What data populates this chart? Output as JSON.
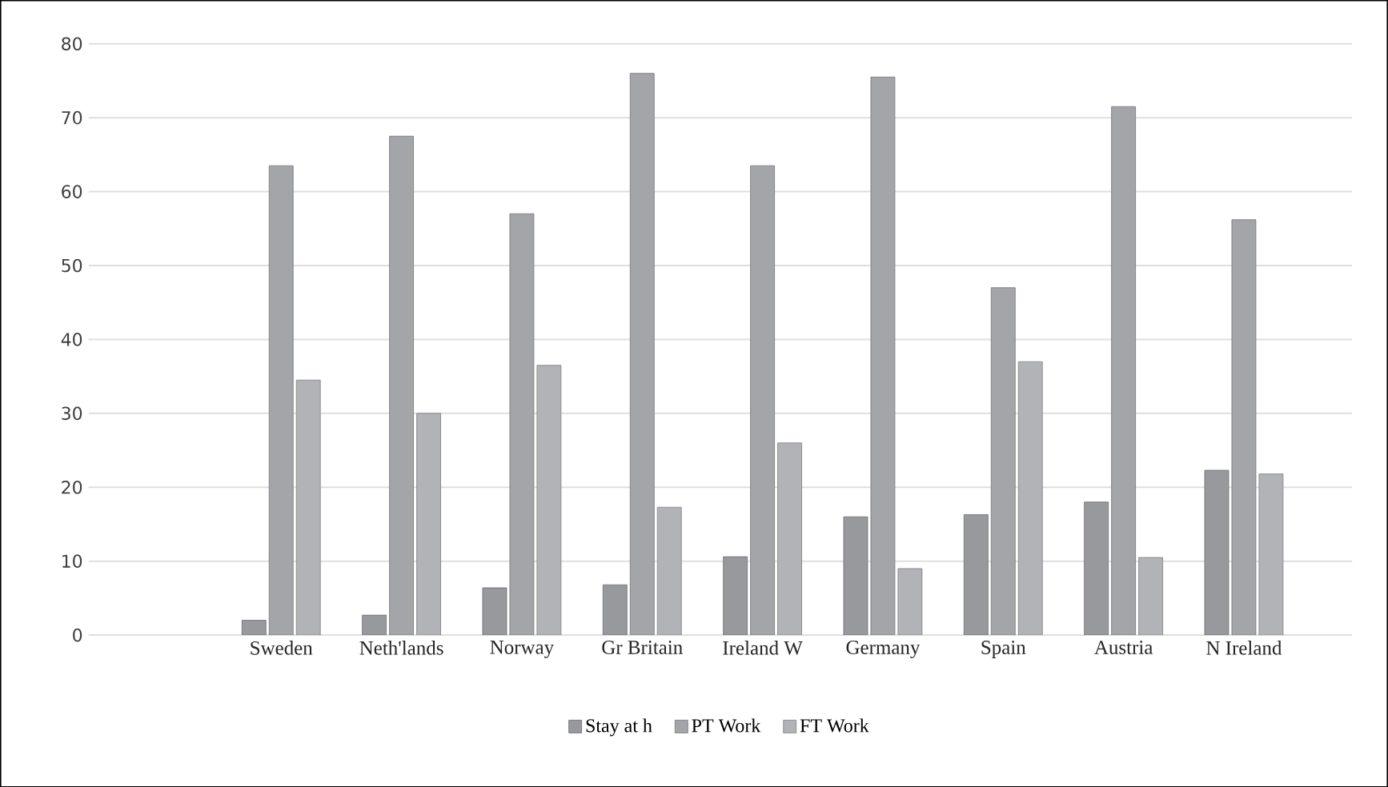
{
  "chart_data": {
    "type": "bar",
    "categories": [
      "Sweden",
      "Neth'lands",
      "Norway",
      "Gr Britain",
      "Ireland W",
      "Germany",
      "Spain",
      "Austria",
      "N Ireland"
    ],
    "series": [
      {
        "name": "Stay at h",
        "color": "#98999d",
        "values": [
          2,
          2.7,
          6.4,
          6.8,
          10.6,
          16,
          16.3,
          18,
          22.3
        ]
      },
      {
        "name": "PT Work",
        "color": "#a4a5a9",
        "values": [
          63.5,
          67.5,
          57,
          76,
          63.5,
          75.5,
          47,
          71.5,
          56.2
        ]
      },
      {
        "name": "FT Work",
        "color": "#b2b3b7",
        "values": [
          34.5,
          30,
          36.5,
          17.3,
          26,
          9,
          37,
          10.5,
          21.8
        ]
      }
    ],
    "ylim": [
      0,
      80
    ],
    "yticks": [
      0,
      10,
      20,
      30,
      40,
      50,
      60,
      70,
      80
    ],
    "grid": "y",
    "legend": "bottom"
  }
}
